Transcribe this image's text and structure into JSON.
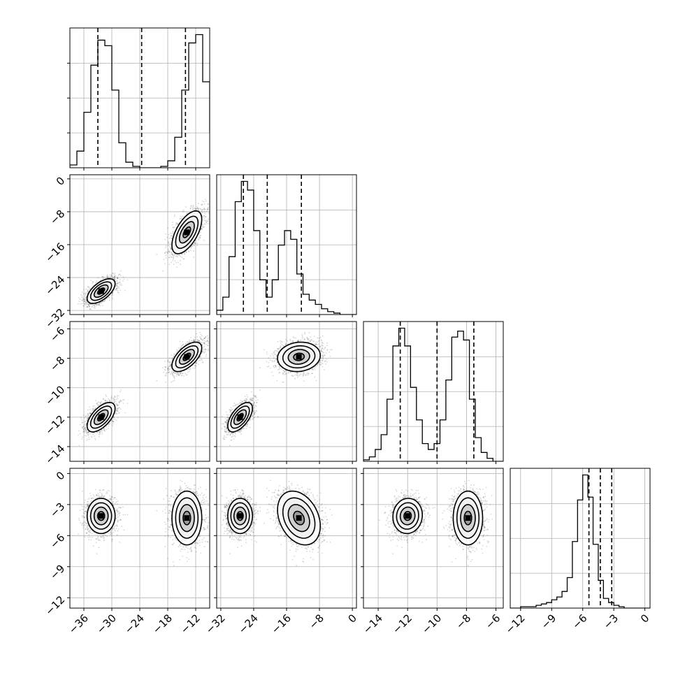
{
  "chart_data": {
    "type": "corner",
    "title": "",
    "grid": true,
    "legend": "none",
    "colors": {
      "line": "#000000",
      "grid": "#b0b0b0",
      "points": "#000000"
    },
    "params": [
      {
        "label": "",
        "range": [
          -39,
          -9
        ],
        "ticks": [
          -36,
          -30,
          -24,
          -18,
          -12
        ],
        "quantiles": [
          -33.0,
          -23.6,
          -14.2
        ]
      },
      {
        "label": "",
        "range": [
          -33,
          1
        ],
        "ticks": [
          -32,
          -24,
          -16,
          -8,
          0
        ],
        "quantiles": [
          -26.5,
          -20.7,
          -12.4
        ]
      },
      {
        "label": "",
        "range": [
          -15,
          -5.5
        ],
        "ticks": [
          -14,
          -12,
          -10,
          -8,
          -6
        ],
        "quantiles": [
          -12.5,
          -10.0,
          -7.5
        ]
      },
      {
        "label": "",
        "range": [
          -13,
          0.5
        ],
        "ticks": [
          -12,
          -9,
          -6,
          -3,
          0
        ],
        "quantiles": [
          -5.4,
          -4.3,
          -3.2
        ]
      }
    ],
    "tick_labels": {
      "x": [
        [
          "−36",
          "−30",
          "−24",
          "−18",
          "−12"
        ],
        [
          "−32",
          "−24",
          "−16",
          "−8",
          "0"
        ],
        [
          "−14",
          "−12",
          "−10",
          "−8",
          "−6"
        ],
        [
          "−12",
          "−9",
          "−6",
          "−3",
          "0"
        ]
      ],
      "y": [
        [],
        [
          "−32",
          "−24",
          "−16",
          "−8",
          "0"
        ],
        [
          "−14",
          "−12",
          "−10",
          "−8",
          "−6"
        ],
        [
          "−12",
          "−9",
          "−6",
          "−3",
          "0"
        ]
      ]
    },
    "histograms": [
      {
        "param": 0,
        "bin_lo": -39,
        "bin_width": 1.5,
        "counts": [
          2,
          12,
          40,
          74,
          92,
          88,
          56,
          18,
          4,
          1,
          0,
          0,
          0,
          1,
          5,
          22,
          56,
          90,
          96,
          62,
          26,
          5
        ]
      },
      {
        "param": 1,
        "bin_lo": -33,
        "bin_width": 1.5,
        "counts": [
          3,
          12,
          40,
          78,
          92,
          86,
          58,
          24,
          12,
          24,
          48,
          58,
          52,
          28,
          14,
          10,
          7,
          4,
          2,
          1,
          0,
          0,
          0
        ]
      },
      {
        "param": 2,
        "bin_lo": -15,
        "bin_width": 0.4,
        "counts": [
          1,
          3,
          8,
          18,
          42,
          78,
          90,
          78,
          50,
          28,
          12,
          8,
          12,
          28,
          55,
          84,
          88,
          82,
          42,
          16,
          6,
          2,
          0,
          0
        ]
      },
      {
        "param": 3,
        "bin_lo": -13,
        "bin_width": 0.5,
        "counts": [
          0,
          0,
          1,
          1,
          1,
          2,
          3,
          4,
          6,
          8,
          12,
          22,
          48,
          78,
          96,
          80,
          46,
          20,
          7,
          4,
          2,
          1,
          0,
          0,
          0,
          0,
          0
        ]
      }
    ],
    "modes": [
      {
        "weight": 0.5,
        "mean": [
          -32.3,
          -27.3,
          -12.0,
          -4.1
        ],
        "sd": [
          1.5,
          1.5,
          0.5,
          0.85
        ]
      },
      {
        "weight": 0.5,
        "mean": [
          -13.9,
          -13.0,
          -7.9,
          -4.3
        ],
        "sd": [
          1.6,
          2.6,
          0.5,
          1.3
        ]
      }
    ],
    "contour_levels_sigma": [
      0.5,
      1.0,
      1.5,
      2.0
    ]
  }
}
